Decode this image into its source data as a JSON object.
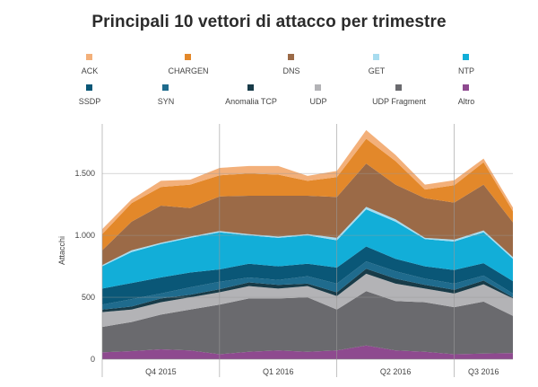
{
  "title": "Principali 10 vettori di attacco per trimestre",
  "chart_data": {
    "type": "area",
    "stacked": true,
    "ylabel": "Attacchi",
    "ylim": [
      0,
      1900
    ],
    "yticks": [
      {
        "value": 0,
        "label": "0"
      },
      {
        "value": 500,
        "label": "500"
      },
      {
        "value": 1000,
        "label": "1.000"
      },
      {
        "value": 1500,
        "label": "1.500"
      }
    ],
    "xlim": [
      0,
      14
    ],
    "x_groups": [
      {
        "label": "Q4 2015",
        "start": 0,
        "end": 4
      },
      {
        "label": "Q1 2016",
        "start": 4,
        "end": 8
      },
      {
        "label": "Q2 2016",
        "start": 8,
        "end": 12
      },
      {
        "label": "Q3 2016",
        "start": 12,
        "end": 14
      }
    ],
    "x": [
      0,
      1,
      2,
      3,
      4,
      5,
      6,
      7,
      8,
      9,
      10,
      11,
      12,
      13,
      14
    ],
    "series": [
      {
        "name": "Altro",
        "color": "#8e4a8f",
        "values": [
          55,
          65,
          80,
          70,
          40,
          60,
          70,
          60,
          70,
          110,
          70,
          60,
          40,
          45,
          50
        ]
      },
      {
        "name": "UDP Fragment",
        "color": "#6a6a6e",
        "values": [
          205,
          235,
          280,
          330,
          400,
          430,
          420,
          440,
          330,
          440,
          400,
          400,
          380,
          420,
          300
        ]
      },
      {
        "name": "UDP",
        "color": "#b3b3b6",
        "values": [
          120,
          100,
          100,
          100,
          100,
          100,
          80,
          90,
          110,
          140,
          140,
          110,
          110,
          140,
          140
        ]
      },
      {
        "name": "Anomalia TCP",
        "color": "#183b48",
        "values": [
          20,
          25,
          30,
          20,
          25,
          30,
          30,
          20,
          30,
          40,
          40,
          30,
          30,
          30,
          10
        ]
      },
      {
        "name": "SYN",
        "color": "#1f6b8d",
        "values": [
          40,
          60,
          40,
          60,
          60,
          40,
          40,
          60,
          70,
          60,
          60,
          50,
          50,
          40,
          30
        ]
      },
      {
        "name": "SSDP",
        "color": "#0a5777",
        "values": [
          130,
          130,
          130,
          120,
          100,
          110,
          110,
          100,
          130,
          120,
          100,
          100,
          110,
          100,
          100
        ]
      },
      {
        "name": "NTP",
        "color": "#12aed8",
        "values": [
          180,
          250,
          270,
          280,
          300,
          230,
          230,
          230,
          220,
          300,
          300,
          220,
          230,
          250,
          180
        ]
      },
      {
        "name": "GET",
        "color": "#a8dcef",
        "values": [
          10,
          15,
          10,
          10,
          10,
          10,
          10,
          10,
          20,
          20,
          20,
          10,
          15,
          15,
          15
        ]
      },
      {
        "name": "DNS",
        "color": "#9b6a47",
        "values": [
          120,
          230,
          300,
          230,
          280,
          310,
          330,
          310,
          330,
          350,
          280,
          320,
          300,
          370,
          280
        ]
      },
      {
        "name": "CHARGEN",
        "color": "#e3882a",
        "values": [
          130,
          150,
          150,
          190,
          170,
          180,
          170,
          120,
          160,
          200,
          190,
          70,
          140,
          180,
          90
        ]
      },
      {
        "name": "ACK",
        "color": "#f3b07a",
        "values": [
          40,
          30,
          50,
          40,
          60,
          60,
          70,
          40,
          50,
          70,
          50,
          40,
          40,
          30,
          30
        ]
      }
    ],
    "grid": {
      "horizontal": true,
      "vertical_group_separators": true
    },
    "legend": "top"
  },
  "legend_rows": [
    [
      "ACK",
      "CHARGEN",
      "DNS",
      "GET",
      "NTP"
    ],
    [
      "SSDP",
      "SYN",
      "Anomalia TCP",
      "UDP",
      "UDP Fragment",
      "Altro"
    ]
  ]
}
